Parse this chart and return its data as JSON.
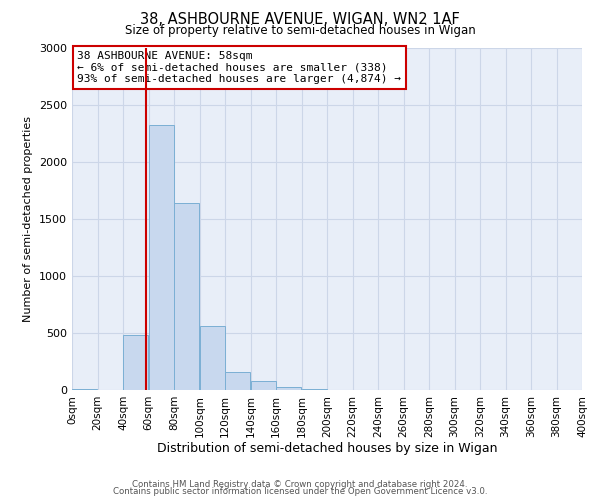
{
  "title": "38, ASHBOURNE AVENUE, WIGAN, WN2 1AF",
  "subtitle": "Size of property relative to semi-detached houses in Wigan",
  "xlabel": "Distribution of semi-detached houses by size in Wigan",
  "ylabel": "Number of semi-detached properties",
  "bar_edges": [
    0,
    20,
    40,
    60,
    80,
    100,
    120,
    140,
    160,
    180,
    200,
    220,
    240,
    260,
    280,
    300,
    320,
    340,
    360,
    380,
    400
  ],
  "bar_heights": [
    5,
    0,
    480,
    2320,
    1640,
    560,
    155,
    80,
    30,
    5,
    0,
    0,
    0,
    0,
    0,
    0,
    0,
    0,
    0,
    0
  ],
  "bar_color": "#c8d8ee",
  "bar_edge_color": "#7bafd4",
  "property_size": 58,
  "property_line_color": "#cc0000",
  "ylim": [
    0,
    3000
  ],
  "yticks": [
    0,
    500,
    1000,
    1500,
    2000,
    2500,
    3000
  ],
  "xtick_labels": [
    "0sqm",
    "20sqm",
    "40sqm",
    "60sqm",
    "80sqm",
    "100sqm",
    "120sqm",
    "140sqm",
    "160sqm",
    "180sqm",
    "200sqm",
    "220sqm",
    "240sqm",
    "260sqm",
    "280sqm",
    "300sqm",
    "320sqm",
    "340sqm",
    "360sqm",
    "380sqm",
    "400sqm"
  ],
  "annotation_title": "38 ASHBOURNE AVENUE: 58sqm",
  "annotation_line1": "← 6% of semi-detached houses are smaller (338)",
  "annotation_line2": "93% of semi-detached houses are larger (4,874) →",
  "annotation_box_color": "#ffffff",
  "annotation_box_edgecolor": "#cc0000",
  "footer_line1": "Contains HM Land Registry data © Crown copyright and database right 2024.",
  "footer_line2": "Contains public sector information licensed under the Open Government Licence v3.0.",
  "grid_color": "#ccd6e8",
  "background_color": "#e8eef8"
}
